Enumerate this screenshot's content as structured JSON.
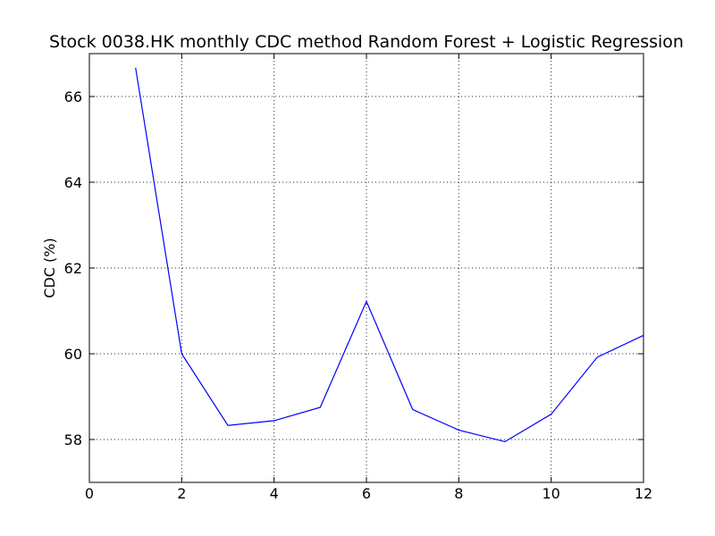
{
  "chart_data": {
    "type": "line",
    "title": "Stock 0038.HK monthly CDC method Random Forest + Logistic Regression",
    "xlabel": "",
    "ylabel": "CDC (%)",
    "xlim": [
      0,
      12
    ],
    "ylim": [
      57,
      67
    ],
    "xticks": [
      "0",
      "2",
      "4",
      "6",
      "8",
      "10",
      "12"
    ],
    "yticks": [
      "58",
      "60",
      "62",
      "64",
      "66"
    ],
    "grid": true,
    "series": [
      {
        "color": "#0000ff",
        "x": [
          1,
          2,
          3,
          4,
          5,
          6,
          7,
          8,
          9,
          10,
          11,
          12
        ],
        "y": [
          66.67,
          60.0,
          58.33,
          58.44,
          58.75,
          61.22,
          58.7,
          58.22,
          57.95,
          58.59,
          59.92,
          60.43
        ]
      }
    ]
  }
}
